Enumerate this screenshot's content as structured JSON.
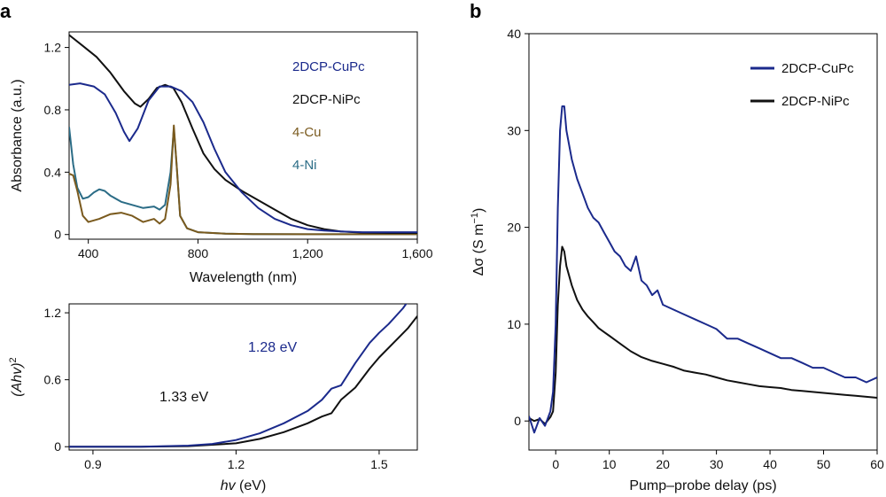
{
  "chart_data": [
    {
      "panel": "a",
      "type": "line",
      "xlabel": "Wavelength (nm)",
      "ylabel": "Absorbance (a.u.)",
      "xlim": [
        330,
        1600
      ],
      "ylim": [
        -0.03,
        1.3
      ],
      "xticks": [
        400,
        800,
        1200,
        1600
      ],
      "xtick_labels": [
        "400",
        "800",
        "1,200",
        "1,600"
      ],
      "yticks": [
        0,
        0.4,
        0.8,
        1.2
      ],
      "ytick_labels": [
        "0",
        "0.4",
        "0.8",
        "1.2"
      ],
      "legend_position": "top-right",
      "series": [
        {
          "name": "2DCP-CuPc",
          "color": "#1b2a8c",
          "x": [
            330,
            370,
            420,
            460,
            500,
            530,
            550,
            580,
            620,
            660,
            700,
            740,
            780,
            820,
            860,
            900,
            960,
            1020,
            1080,
            1140,
            1200,
            1260,
            1320,
            1400,
            1500,
            1600
          ],
          "y": [
            0.96,
            0.97,
            0.95,
            0.9,
            0.78,
            0.66,
            0.6,
            0.68,
            0.86,
            0.95,
            0.95,
            0.92,
            0.85,
            0.72,
            0.55,
            0.4,
            0.27,
            0.17,
            0.1,
            0.06,
            0.035,
            0.025,
            0.02,
            0.015,
            0.015,
            0.015
          ]
        },
        {
          "name": "2DCP-NiPc",
          "color": "#111111",
          "x": [
            330,
            380,
            430,
            480,
            530,
            570,
            590,
            620,
            650,
            680,
            710,
            740,
            780,
            820,
            860,
            900,
            960,
            1020,
            1080,
            1140,
            1200,
            1260,
            1320,
            1400,
            1500,
            1600
          ],
          "y": [
            1.28,
            1.21,
            1.14,
            1.04,
            0.92,
            0.84,
            0.82,
            0.87,
            0.94,
            0.96,
            0.94,
            0.85,
            0.68,
            0.52,
            0.42,
            0.35,
            0.28,
            0.22,
            0.16,
            0.1,
            0.06,
            0.035,
            0.02,
            0.012,
            0.01,
            0.01
          ]
        },
        {
          "name": "4-Cu",
          "color": "#7a5a1e",
          "x": [
            330,
            345,
            360,
            380,
            400,
            440,
            480,
            520,
            560,
            600,
            640,
            660,
            680,
            700,
            712,
            722,
            735,
            760,
            800,
            900,
            1000,
            1200,
            1400,
            1600
          ],
          "y": [
            0.39,
            0.38,
            0.28,
            0.12,
            0.08,
            0.1,
            0.13,
            0.14,
            0.12,
            0.08,
            0.1,
            0.07,
            0.1,
            0.32,
            0.7,
            0.45,
            0.12,
            0.04,
            0.015,
            0.005,
            0.003,
            0.002,
            0.002,
            0.002
          ]
        },
        {
          "name": "4-Ni",
          "color": "#2b6c86",
          "x": [
            330,
            345,
            360,
            380,
            400,
            420,
            440,
            460,
            480,
            520,
            560,
            600,
            640,
            660,
            680,
            700,
            712,
            722,
            735,
            760,
            800,
            900,
            1000,
            1200,
            1400,
            1600
          ],
          "y": [
            0.69,
            0.45,
            0.3,
            0.23,
            0.24,
            0.27,
            0.29,
            0.28,
            0.25,
            0.21,
            0.19,
            0.17,
            0.18,
            0.16,
            0.19,
            0.4,
            0.68,
            0.45,
            0.12,
            0.04,
            0.015,
            0.005,
            0.003,
            0.002,
            0.002,
            0.002
          ]
        }
      ]
    },
    {
      "panel": "a-inset",
      "type": "line",
      "xlabel_prefix": "hv",
      "xlabel_suffix": " (eV)",
      "ylabel_main": "(Ahv)",
      "ylabel_exp": "2",
      "xlim": [
        0.85,
        1.58
      ],
      "ylim": [
        -0.03,
        1.28
      ],
      "xticks": [
        0.9,
        1.2,
        1.5
      ],
      "xtick_labels": [
        "0.9",
        "1.2",
        "1.5"
      ],
      "yticks": [
        0,
        0.6,
        1.2
      ],
      "ytick_labels": [
        "0",
        "0.6",
        "1.2"
      ],
      "annotations": [
        {
          "text": "1.28 eV",
          "color": "#1b2a8c"
        },
        {
          "text": "1.33 eV",
          "color": "#111111"
        }
      ],
      "series": [
        {
          "name": "2DCP-CuPc",
          "color": "#1b2a8c",
          "x": [
            0.85,
            1.0,
            1.1,
            1.15,
            1.2,
            1.25,
            1.3,
            1.35,
            1.38,
            1.4,
            1.42,
            1.45,
            1.48,
            1.5,
            1.52,
            1.55,
            1.56
          ],
          "y": [
            0,
            0,
            0.01,
            0.025,
            0.06,
            0.12,
            0.21,
            0.32,
            0.42,
            0.52,
            0.55,
            0.75,
            0.93,
            1.02,
            1.1,
            1.24,
            1.3
          ]
        },
        {
          "name": "2DCP-NiPc",
          "color": "#111111",
          "x": [
            0.85,
            1.0,
            1.1,
            1.2,
            1.25,
            1.3,
            1.35,
            1.38,
            1.4,
            1.42,
            1.45,
            1.48,
            1.5,
            1.53,
            1.56,
            1.58
          ],
          "y": [
            0,
            0,
            0.005,
            0.03,
            0.07,
            0.13,
            0.21,
            0.27,
            0.3,
            0.42,
            0.53,
            0.7,
            0.8,
            0.93,
            1.06,
            1.17
          ]
        }
      ]
    },
    {
      "panel": "b",
      "type": "line",
      "xlabel": "Pump–probe delay (ps)",
      "ylabel_main": "Δσ (S m",
      "ylabel_exp": "−1",
      "ylabel_close": ")",
      "xlim": [
        -5,
        60
      ],
      "ylim": [
        -3,
        40
      ],
      "xticks": [
        0,
        10,
        20,
        30,
        40,
        50,
        60
      ],
      "xtick_labels": [
        "0",
        "10",
        "20",
        "30",
        "40",
        "50",
        "60"
      ],
      "yticks": [
        0,
        10,
        20,
        30,
        40
      ],
      "ytick_labels": [
        "0",
        "10",
        "20",
        "30",
        "40"
      ],
      "legend_position": "top-right",
      "series": [
        {
          "name": "2DCP-CuPc",
          "color": "#1b2a8c",
          "x": [
            -5,
            -4,
            -3,
            -2,
            -1,
            -0.5,
            0,
            0.4,
            0.8,
            1.2,
            1.6,
            2,
            3,
            4,
            5,
            6,
            7,
            8,
            9,
            10,
            11,
            12,
            13,
            14,
            15,
            16,
            17,
            18,
            19,
            20,
            22,
            24,
            26,
            28,
            30,
            32,
            34,
            36,
            38,
            40,
            42,
            44,
            46,
            48,
            50,
            52,
            54,
            56,
            58,
            60
          ],
          "y": [
            0.5,
            -1.2,
            0.3,
            -0.5,
            1.0,
            3.0,
            10,
            22,
            30,
            32.5,
            32.5,
            30,
            27,
            25,
            23.5,
            22,
            21,
            20.5,
            19.5,
            18.5,
            17.5,
            17,
            16,
            15.5,
            17,
            14.5,
            14,
            13,
            13.5,
            12,
            11.5,
            11,
            10.5,
            10,
            9.5,
            8.5,
            8.5,
            8,
            7.5,
            7,
            6.5,
            6.5,
            6,
            5.5,
            5.5,
            5,
            4.5,
            4.5,
            4,
            4.5
          ]
        },
        {
          "name": "2DCP-NiPc",
          "color": "#111111",
          "x": [
            -5,
            -4,
            -3,
            -2,
            -1,
            -0.5,
            0,
            0.4,
            0.8,
            1.2,
            1.6,
            2,
            3,
            4,
            5,
            6,
            7,
            8,
            9,
            10,
            12,
            14,
            16,
            18,
            20,
            22,
            24,
            26,
            28,
            30,
            32,
            34,
            36,
            38,
            40,
            42,
            44,
            46,
            48,
            50,
            52,
            54,
            56,
            58,
            60
          ],
          "y": [
            0.3,
            0.0,
            0.2,
            -0.3,
            0.4,
            1.0,
            5,
            12,
            16,
            18,
            17.5,
            16,
            14,
            12.5,
            11.5,
            10.8,
            10.2,
            9.6,
            9.2,
            8.8,
            8.0,
            7.2,
            6.6,
            6.2,
            5.9,
            5.6,
            5.2,
            5.0,
            4.8,
            4.5,
            4.2,
            4.0,
            3.8,
            3.6,
            3.5,
            3.4,
            3.2,
            3.1,
            3.0,
            2.9,
            2.8,
            2.7,
            2.6,
            2.5,
            2.4
          ]
        }
      ]
    }
  ],
  "labels": {
    "panel_a": "a",
    "panel_b": "b"
  }
}
